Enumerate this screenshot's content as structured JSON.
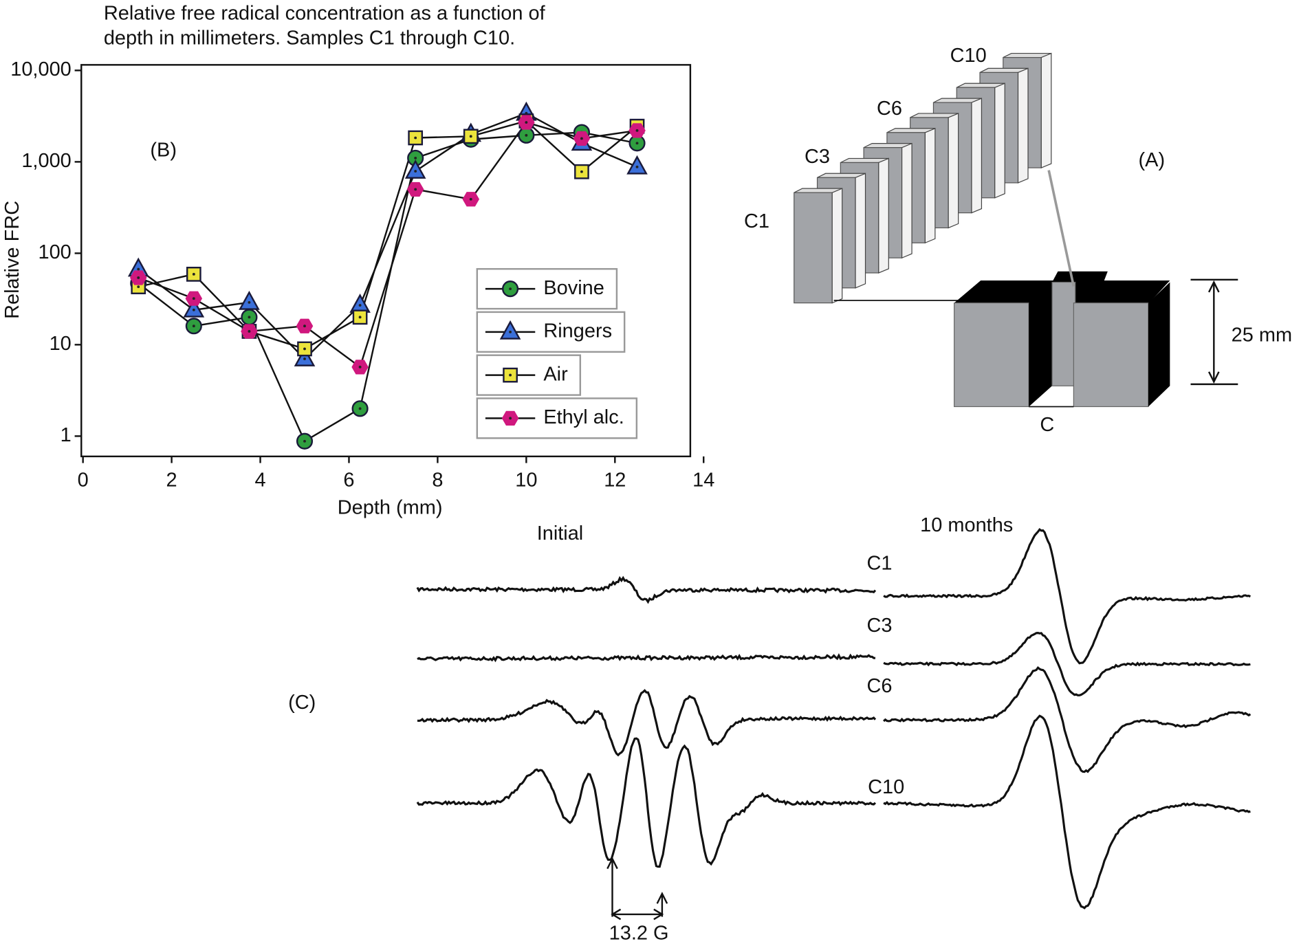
{
  "chart_data": {
    "type": "line",
    "log_y": true,
    "title": [
      "Relative free radical concentration as a function of",
      "depth in millimeters. Samples C1 through C10."
    ],
    "panel_label": "(B)",
    "x_label": "Depth (mm)",
    "y_label": "Relative FRC",
    "x": [
      1.25,
      2.5,
      3.75,
      5,
      6.25,
      7.5,
      8.75,
      10,
      11.25,
      12.5
    ],
    "series": [
      {
        "name": "Bovine",
        "color": "#2f9e3f",
        "marker": "circle",
        "values": [
          47,
          16,
          20,
          0.88,
          2,
          1100,
          1760,
          1950,
          2100,
          1600
        ]
      },
      {
        "name": "Ringers",
        "color": "#3b6fd9",
        "marker": "triangle",
        "values": [
          67,
          24,
          29,
          7,
          27,
          790,
          2000,
          3400,
          1600,
          880
        ]
      },
      {
        "name": "Air",
        "color": "#ece33c",
        "marker": "square",
        "values": [
          43,
          59,
          14,
          9,
          20,
          1830,
          1900,
          2800,
          780,
          2450
        ]
      },
      {
        "name": "Ethyl alc.",
        "color": "#d0187e",
        "marker": "hexagon",
        "values": [
          54,
          32,
          14,
          16,
          5.7,
          500,
          390,
          2700,
          1800,
          2200
        ]
      }
    ],
    "xlim": [
      0,
      14
    ],
    "xticks": [
      0,
      2,
      4,
      6,
      8,
      10,
      12,
      14
    ],
    "ylim": [
      0.6,
      11500
    ],
    "yticks": [
      1,
      10,
      100,
      {
        "value": 1000,
        "label": "1,000"
      },
      {
        "value": 10000,
        "label": "10,000"
      }
    ],
    "grid": false,
    "legend": "lower right"
  },
  "diagram": {
    "panel_label": "(A)",
    "slab_labels": [
      "C1",
      "C3",
      "C6",
      "C10"
    ],
    "dimension": "25 mm",
    "section_label": "C"
  },
  "spectra": {
    "panel_label": "(C)",
    "columns": [
      "Initial",
      "10 months"
    ],
    "rows": [
      "C1",
      "C3",
      "C6",
      "C10"
    ],
    "spacing": "13.2 G"
  }
}
